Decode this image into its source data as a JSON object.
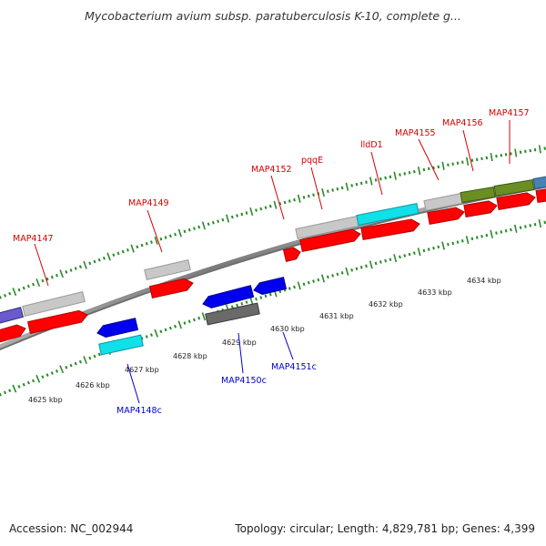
{
  "title": "Mycobacterium avium subsp. paratuberculosis K-10, complete g...",
  "footer": {
    "accession": "Accession: NC_002944",
    "summary": "Topology: circular; Length: 4,829,781 bp; Genes: 4,399"
  },
  "scale_labels": [
    "4625 kbp",
    "4626 kbp",
    "4627 kbp",
    "4628 kbp",
    "4629 kbp",
    "4630 kbp",
    "4631 kbp",
    "4632 kbp",
    "4633 kbp",
    "4634 kbp"
  ],
  "forward_labels": [
    "MAP4147",
    "MAP4149",
    "MAP4152",
    "pqqE",
    "lldD1",
    "MAP4155",
    "MAP4156",
    "MAP4157"
  ],
  "reverse_labels": [
    "MAP4148c",
    "MAP4150c",
    "MAP4151c"
  ],
  "colors": {
    "gene_red": "#ff0000",
    "gene_blue": "#0000ee",
    "gene_cyan": "#11e0e8",
    "gene_grey": "#c8c8c8",
    "gene_dark_grey": "#6a6a6a",
    "gene_olive": "#6b8e23",
    "gene_steelblue": "#4682b4",
    "gene_purple": "#6a5acd",
    "backbone": "#888888",
    "tick_green": "#2a8a2a",
    "forward_label": "#d40000",
    "reverse_label": "#0000cc"
  }
}
